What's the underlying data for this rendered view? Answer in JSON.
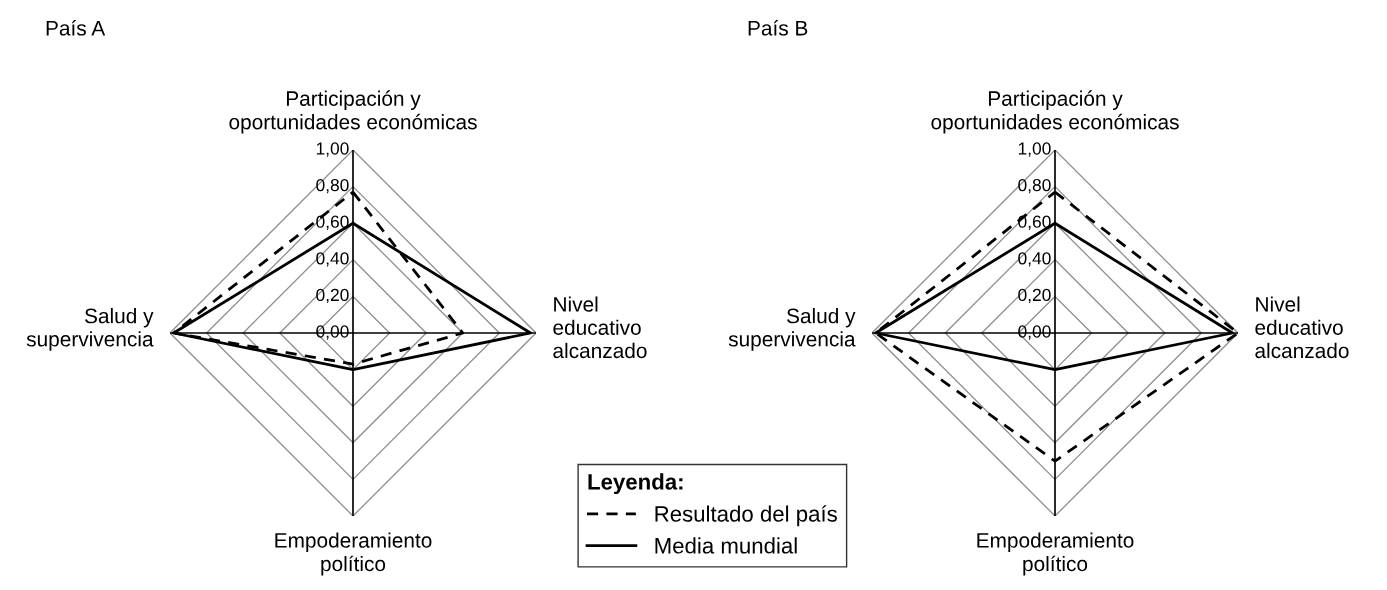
{
  "chart_data": [
    {
      "type": "radar",
      "title": "País A",
      "categories": [
        "Participación y\noportunidades económicas",
        "Nivel\neducativo\nalcanzado",
        "Empoderamiento\npolítico",
        "Salud y\nsupervivencia"
      ],
      "series": [
        {
          "name": "Resultado del país",
          "color": "#000000",
          "line_style": "dashed",
          "values": [
            0.77,
            0.6,
            0.17,
            0.98
          ]
        },
        {
          "name": "Media mundial",
          "color": "#000000",
          "line_style": "solid",
          "values": [
            0.6,
            0.97,
            0.2,
            0.98
          ]
        }
      ],
      "ylim": [
        0,
        1
      ],
      "yticks": [
        {
          "value": 0,
          "label": "0,00"
        },
        {
          "value": 0.2,
          "label": "0,20"
        },
        {
          "value": 0.4,
          "label": "0,40"
        },
        {
          "value": 0.6,
          "label": "0,60"
        },
        {
          "value": 0.8,
          "label": "0,80"
        },
        {
          "value": 1,
          "label": "1,00"
        }
      ],
      "grid": true,
      "legend": "bottom right",
      "legend_title": "Leyenda:"
    },
    {
      "type": "radar",
      "title": "País B",
      "categories": [
        "Participación y\noportunidades económicas",
        "Nivel\neducativo\nalcanzado",
        "Empoderamiento\npolítico",
        "Salud y\nsupervivencia"
      ],
      "series": [
        {
          "color": "#000000",
          "line_style": "dashed",
          "values": [
            0.77,
            1.0,
            0.7,
            0.98
          ]
        },
        {
          "color": "#000000",
          "line_style": "solid",
          "values": [
            0.6,
            0.97,
            0.2,
            0.98
          ]
        }
      ],
      "ylim": [
        0,
        1
      ],
      "yticks": [
        {
          "value": 0,
          "label": "0,00"
        },
        {
          "value": 0.2,
          "label": "0,20"
        },
        {
          "value": 0.4,
          "label": "0,40"
        },
        {
          "value": 0.6,
          "label": "0,60"
        },
        {
          "value": 0.8,
          "label": "0,80"
        },
        {
          "value": 1,
          "label": "1,00"
        }
      ],
      "grid": true
    }
  ]
}
